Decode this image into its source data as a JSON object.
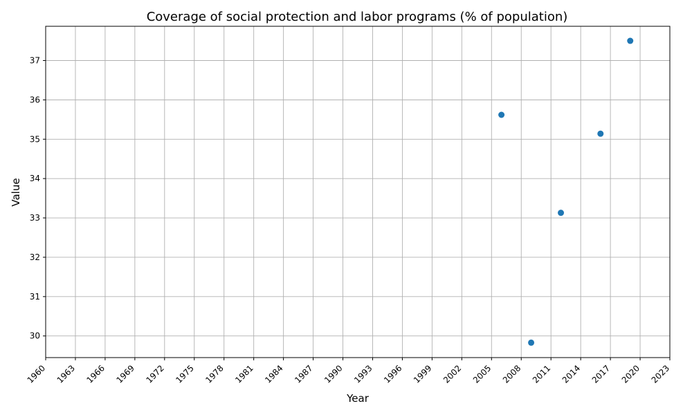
{
  "chart_data": {
    "type": "scatter",
    "title": "Coverage of social protection and labor programs (% of population)",
    "xlabel": "Year",
    "ylabel": "Value",
    "xlim": [
      1960,
      2023
    ],
    "ylim": [
      29.45,
      37.87
    ],
    "xticks": [
      1960,
      1963,
      1966,
      1969,
      1972,
      1975,
      1978,
      1981,
      1984,
      1987,
      1990,
      1993,
      1996,
      1999,
      2002,
      2005,
      2008,
      2011,
      2014,
      2017,
      2020,
      2023
    ],
    "yticks": [
      30,
      31,
      32,
      33,
      34,
      35,
      36,
      37
    ],
    "grid": true,
    "point_color": "#1f77b4",
    "series": [
      {
        "x": [
          2006,
          2009,
          2012,
          2016,
          2019
        ],
        "y": [
          35.62,
          29.83,
          33.13,
          35.14,
          37.5
        ]
      }
    ]
  }
}
